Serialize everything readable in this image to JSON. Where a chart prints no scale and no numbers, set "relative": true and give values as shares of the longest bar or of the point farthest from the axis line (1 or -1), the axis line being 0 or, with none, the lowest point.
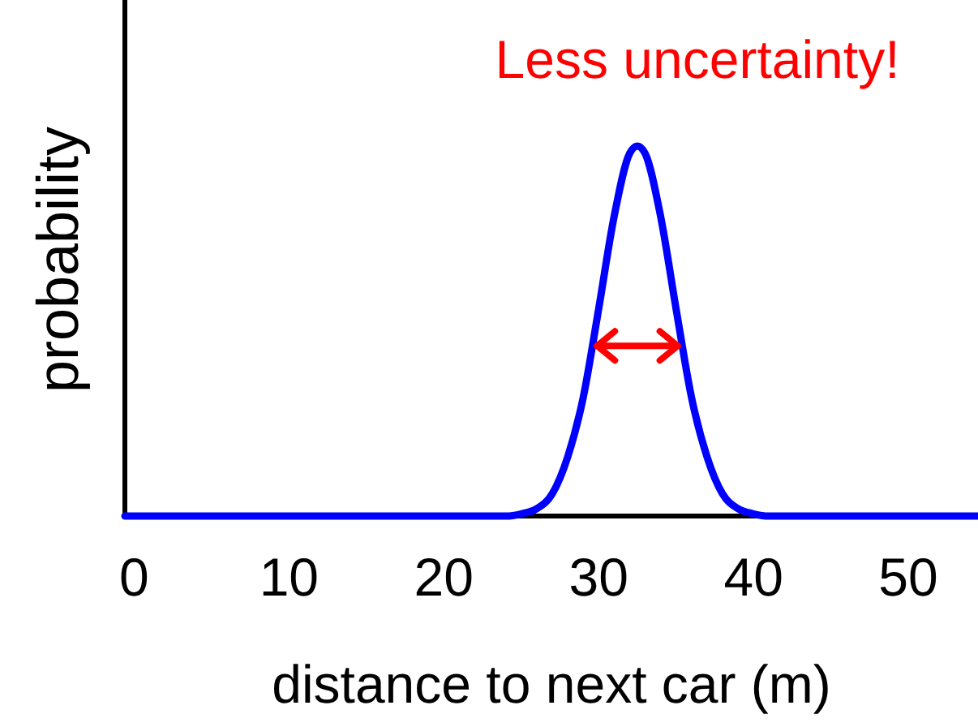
{
  "chart_data": {
    "type": "line",
    "relative": true,
    "xlabel": "distance to next car (m)",
    "ylabel": "probability",
    "annotations": [
      "Less uncertainty!"
    ],
    "xlim": [
      -0.6,
      54.5
    ],
    "xticks": [
      0,
      10,
      20,
      30,
      40,
      50
    ],
    "tick_labels": "x",
    "grid": false,
    "marker": "none",
    "line_style": "solid",
    "series": [
      {
        "color": "#0000ff",
        "x": [
          -0.6,
          10,
          20,
          24,
          25,
          26,
          27,
          28,
          29,
          30,
          31,
          32,
          32.5,
          33,
          34,
          35,
          36,
          37,
          38,
          39,
          40,
          41,
          45,
          54.5
        ],
        "values": [
          0,
          0,
          0,
          0,
          0.006,
          0.02,
          0.06,
          0.16,
          0.32,
          0.56,
          0.81,
          0.98,
          1,
          0.98,
          0.81,
          0.56,
          0.32,
          0.16,
          0.06,
          0.02,
          0.006,
          0,
          0,
          0
        ]
      }
    ]
  }
}
